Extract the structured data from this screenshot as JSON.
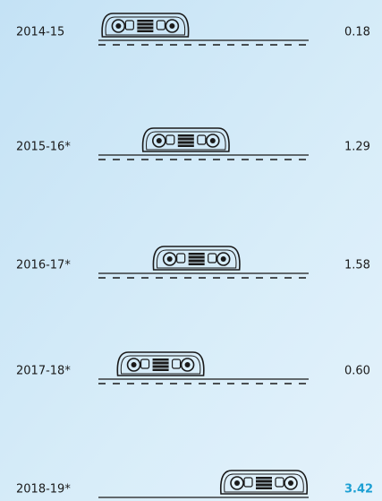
{
  "chart_data": {
    "type": "track",
    "categories": [
      "2014-15",
      "2015-16*",
      "2016-17*",
      "2017-18*",
      "2018-19*"
    ],
    "values": [
      0.18,
      1.29,
      1.58,
      0.6,
      3.42
    ],
    "value_labels": [
      "0.18",
      "1.29",
      "1.58",
      "0.60",
      "3.42"
    ],
    "value_colors": [
      "#1a1a1a",
      "#1a1a1a",
      "#1a1a1a",
      "#1a1a1a",
      "#1b9fd3"
    ],
    "color": "#1a1a1a"
  }
}
